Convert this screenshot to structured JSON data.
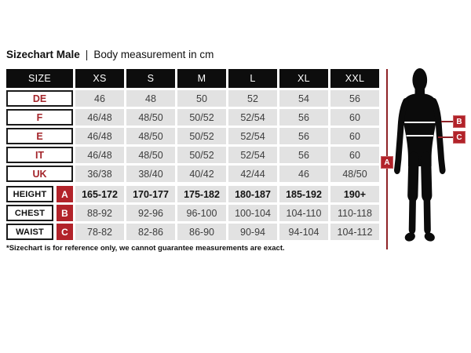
{
  "header": {
    "title": "Sizechart Male",
    "separator": "|",
    "subtitle": "Body measurement in cm"
  },
  "table": {
    "size_label": "SIZE",
    "columns": [
      "XS",
      "S",
      "M",
      "L",
      "XL",
      "XXL"
    ],
    "region_rows": [
      {
        "label": "DE",
        "values": [
          "46",
          "48",
          "50",
          "52",
          "54",
          "56"
        ]
      },
      {
        "label": "F",
        "values": [
          "46/48",
          "48/50",
          "50/52",
          "52/54",
          "56",
          "60"
        ]
      },
      {
        "label": "E",
        "values": [
          "46/48",
          "48/50",
          "50/52",
          "52/54",
          "56",
          "60"
        ]
      },
      {
        "label": "IT",
        "values": [
          "46/48",
          "48/50",
          "50/52",
          "52/54",
          "56",
          "60"
        ]
      },
      {
        "label": "UK",
        "values": [
          "36/38",
          "38/40",
          "40/42",
          "42/44",
          "46",
          "48/50"
        ]
      }
    ],
    "measure_rows": [
      {
        "label": "HEIGHT",
        "marker": "A",
        "bold": true,
        "values": [
          "165-172",
          "170-177",
          "175-182",
          "180-187",
          "185-192",
          "190+"
        ]
      },
      {
        "label": "CHEST",
        "marker": "B",
        "bold": false,
        "values": [
          "88-92",
          "92-96",
          "96-100",
          "100-104",
          "104-110",
          "110-118"
        ]
      },
      {
        "label": "WAIST",
        "marker": "C",
        "bold": false,
        "values": [
          "78-82",
          "82-86",
          "86-90",
          "90-94",
          "94-104",
          "104-112"
        ]
      }
    ]
  },
  "figure": {
    "markers": [
      "A",
      "B",
      "C"
    ]
  },
  "footnote": "*Sizechart is for reference only, we cannot guarantee measurements are exact.",
  "colors": {
    "accent_red_text": "#a3242a",
    "badge_red": "#b2232a",
    "measure_line_red": "#8f2327",
    "cell_gray": "#e2e2e2",
    "header_black": "#0d0d0d",
    "silhouette_black": "#0b0b0b"
  },
  "chart_data": {
    "type": "table",
    "title": "Sizechart Male | Body measurement in cm",
    "columns": [
      "SIZE",
      "XS",
      "S",
      "M",
      "L",
      "XL",
      "XXL"
    ],
    "rows": [
      [
        "DE",
        "46",
        "48",
        "50",
        "52",
        "54",
        "56"
      ],
      [
        "F",
        "46/48",
        "48/50",
        "50/52",
        "52/54",
        "56",
        "60"
      ],
      [
        "E",
        "46/48",
        "48/50",
        "50/52",
        "52/54",
        "56",
        "60"
      ],
      [
        "IT",
        "46/48",
        "48/50",
        "50/52",
        "52/54",
        "56",
        "60"
      ],
      [
        "UK",
        "36/38",
        "38/40",
        "40/42",
        "42/44",
        "46",
        "48/50"
      ],
      [
        "HEIGHT (A)",
        "165-172",
        "170-177",
        "175-182",
        "180-187",
        "185-192",
        "190+"
      ],
      [
        "CHEST (B)",
        "88-92",
        "92-96",
        "96-100",
        "100-104",
        "104-110",
        "110-118"
      ],
      [
        "WAIST (C)",
        "78-82",
        "82-86",
        "86-90",
        "90-94",
        "94-104",
        "104-112"
      ]
    ],
    "note": "*Sizechart is for reference only, we cannot guarantee measurements are exact."
  }
}
